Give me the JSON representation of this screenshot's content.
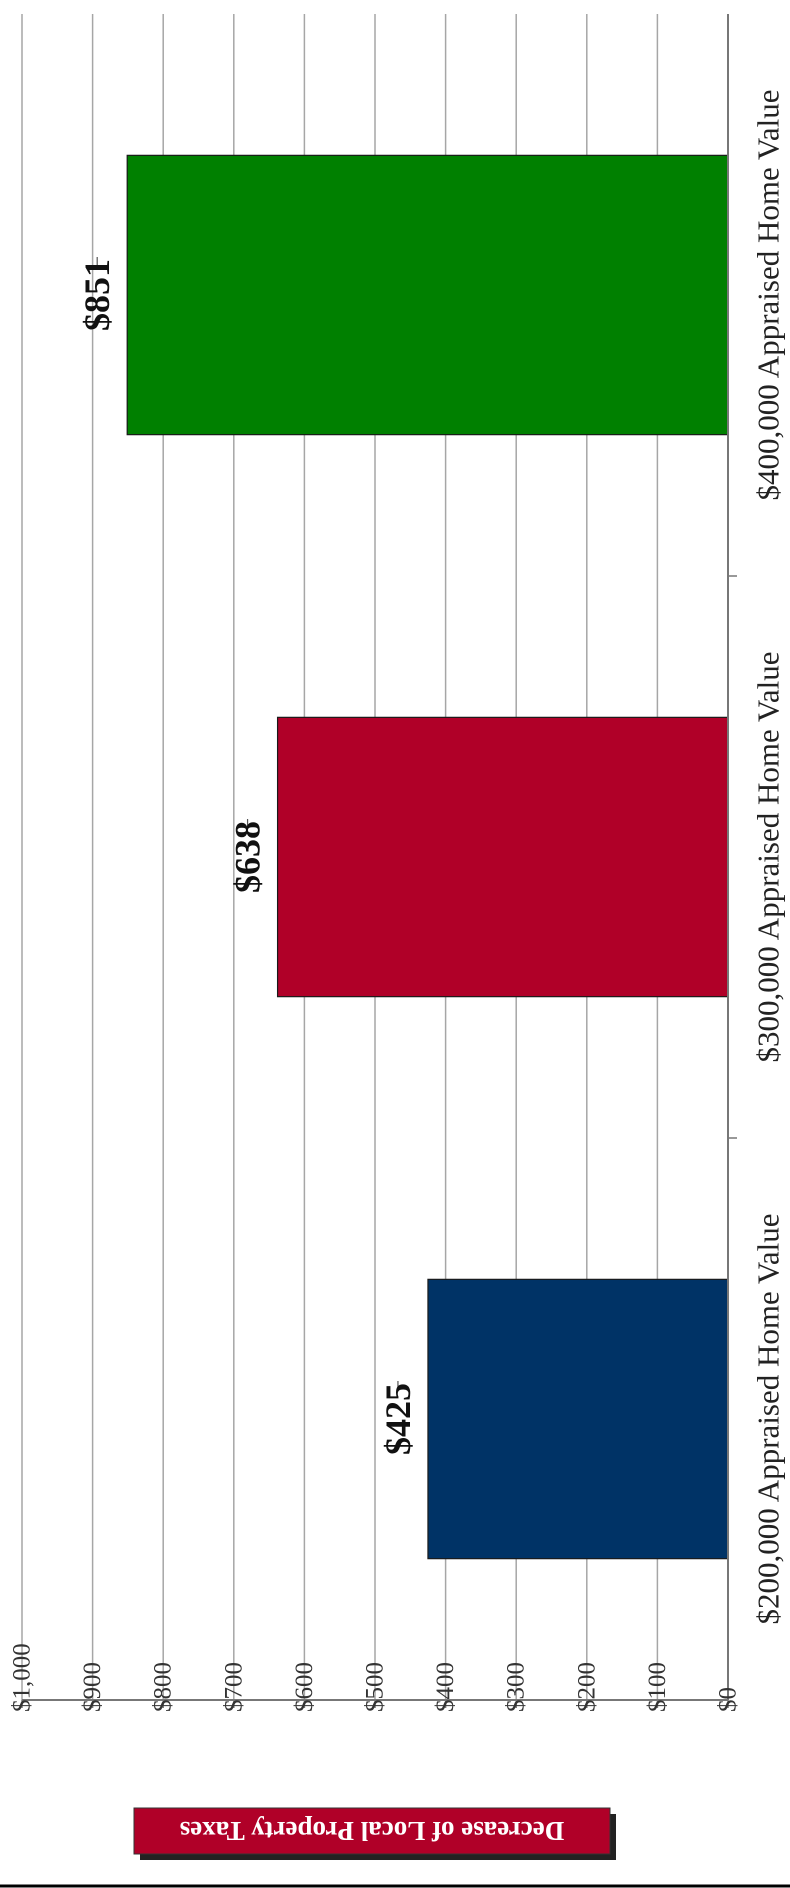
{
  "chart_data": {
    "type": "bar",
    "orientation": "horizontal",
    "categories": [
      "$200,000 Appraised Home Value",
      "$300,000 Appraised Home Value",
      "$400,000 Appraised Home Value"
    ],
    "values": [
      425,
      638,
      851
    ],
    "value_labels": [
      "$425",
      "$638",
      "$851"
    ],
    "ylabel": "Decrease of Local Property Taxes",
    "xlabel": "",
    "ylim": [
      0,
      1000
    ],
    "tick_labels": [
      "$0",
      "$100",
      "$200",
      "$300",
      "$400",
      "$500",
      "$600",
      "$700",
      "$800",
      "$900",
      "$1,000"
    ],
    "grid": true,
    "colors": [
      "#003366",
      "#b00028",
      "#008000"
    ],
    "ylabel_background": "#b00028"
  }
}
